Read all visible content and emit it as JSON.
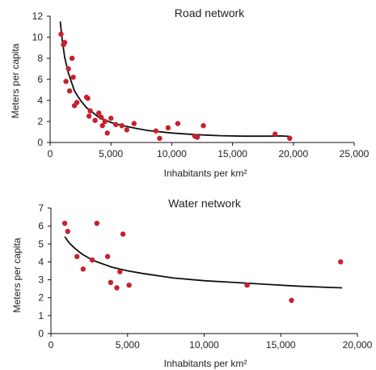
{
  "chart_data": [
    {
      "type": "scatter",
      "title": "Road network",
      "xlabel": "Inhabitants per km²",
      "ylabel": "Meters per capita",
      "xlim": [
        0,
        25000
      ],
      "ylim": [
        0,
        12
      ],
      "x_ticks": [
        0,
        5000,
        10000,
        15000,
        20000,
        25000
      ],
      "x_tick_labels": [
        "0",
        "5,000",
        "10,000",
        "15,000",
        "20,000",
        "25,000"
      ],
      "y_ticks": [
        0,
        2,
        4,
        6,
        8,
        10,
        12
      ],
      "y_tick_labels": [
        "0",
        "2",
        "4",
        "6",
        "8",
        "10",
        "12"
      ],
      "grid": false,
      "legend": false,
      "point_color": "#c8202c",
      "line_color": "#111111",
      "series": [
        {
          "kind": "points",
          "x": [
            900,
            1100,
            1200,
            1300,
            1500,
            1600,
            1800,
            1900,
            2000,
            2200,
            3000,
            3100,
            3200,
            3300,
            3700,
            4000,
            4200,
            4300,
            4500,
            4700,
            5000,
            5400,
            5900,
            6300,
            6900,
            8700,
            9000,
            9700,
            10500,
            11900,
            12100,
            12600,
            18500,
            19700
          ],
          "y": [
            10.3,
            9.3,
            9.5,
            5.8,
            7.0,
            4.9,
            8.0,
            6.2,
            3.5,
            3.8,
            4.3,
            4.2,
            2.5,
            3.0,
            2.1,
            2.8,
            2.4,
            1.6,
            2.0,
            0.9,
            2.3,
            1.7,
            1.6,
            1.2,
            1.8,
            1.1,
            0.4,
            1.4,
            1.8,
            0.6,
            0.5,
            1.6,
            0.8,
            0.4
          ]
        },
        {
          "kind": "fit-line",
          "x": [
            830,
            1000,
            1200,
            1500,
            2000,
            2500,
            3000,
            4000,
            5000,
            6000,
            7000,
            8000,
            10000,
            12000,
            14000,
            16000,
            18000,
            19000,
            19700
          ],
          "y": [
            11.5,
            9.7,
            8.1,
            6.6,
            4.9,
            4.0,
            3.3,
            2.4,
            1.9,
            1.6,
            1.35,
            1.15,
            0.9,
            0.75,
            0.65,
            0.6,
            0.6,
            0.62,
            0.58
          ]
        }
      ]
    },
    {
      "type": "scatter",
      "title": "Water network",
      "xlabel": "Inhabitants per km²",
      "ylabel": "Meters per capita",
      "xlim": [
        0,
        20000
      ],
      "ylim": [
        0,
        7
      ],
      "x_ticks": [
        0,
        5000,
        10000,
        15000,
        20000
      ],
      "x_tick_labels": [
        "0",
        "5,000",
        "10,000",
        "15,000",
        "20,000"
      ],
      "y_ticks": [
        0,
        1,
        2,
        3,
        4,
        5,
        6,
        7
      ],
      "y_tick_labels": [
        "0",
        "1",
        "2",
        "3",
        "4",
        "5",
        "6",
        "7"
      ],
      "grid": false,
      "legend": false,
      "point_color": "#c8202c",
      "line_color": "#111111",
      "series": [
        {
          "kind": "points",
          "x": [
            900,
            1100,
            1700,
            2100,
            2700,
            3000,
            3700,
            3900,
            4300,
            4500,
            4700,
            5100,
            12800,
            15700,
            18900
          ],
          "y": [
            6.15,
            5.7,
            4.3,
            3.6,
            4.1,
            6.15,
            4.3,
            2.85,
            2.55,
            3.45,
            5.55,
            2.7,
            2.7,
            1.85,
            4.0
          ]
        },
        {
          "kind": "fit-line",
          "x": [
            900,
            1200,
            1500,
            2000,
            2500,
            3000,
            4000,
            5000,
            6000,
            8000,
            10000,
            12000,
            14000,
            16000,
            18000,
            19000
          ],
          "y": [
            5.4,
            5.05,
            4.8,
            4.45,
            4.2,
            4.0,
            3.7,
            3.5,
            3.35,
            3.1,
            2.95,
            2.85,
            2.75,
            2.65,
            2.58,
            2.55
          ]
        }
      ]
    }
  ]
}
